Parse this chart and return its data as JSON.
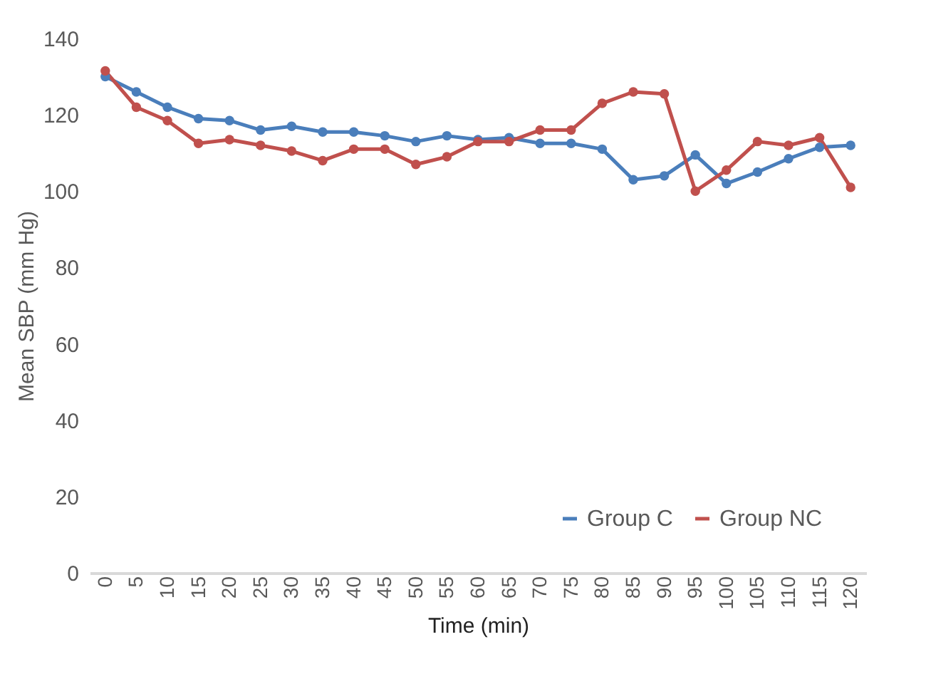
{
  "chart_data": {
    "type": "line",
    "xlabel": "Time (min)",
    "ylabel": "Mean SBP (mm Hg)",
    "categories": [
      "0",
      "5",
      "10",
      "15",
      "20",
      "25",
      "30",
      "35",
      "40",
      "45",
      "50",
      "55",
      "60",
      "65",
      "70",
      "75",
      "80",
      "85",
      "90",
      "95",
      "100",
      "105",
      "110",
      "115",
      "120"
    ],
    "series": [
      {
        "name": "Group C",
        "color": "#4a7ebb",
        "values": [
          130,
          126,
          122,
          119,
          118.5,
          116,
          117,
          115.5,
          115.5,
          114.5,
          113,
          114.5,
          113.5,
          114,
          112.5,
          112.5,
          111,
          103,
          104,
          109.5,
          102,
          105,
          108.5,
          111.5,
          112
        ]
      },
      {
        "name": "Group NC",
        "color": "#c0504d",
        "values": [
          131.5,
          122,
          118.5,
          112.5,
          113.5,
          112,
          110.5,
          108,
          111,
          111,
          107,
          109,
          113,
          113,
          116,
          116,
          123,
          126,
          125.5,
          100,
          105.5,
          113,
          112,
          114,
          101
        ]
      }
    ],
    "ylim": [
      0,
      140
    ],
    "yticks": [
      0,
      20,
      40,
      60,
      80,
      100,
      120,
      140
    ],
    "grid": false,
    "legend": "bottom right",
    "marker": "circle",
    "line_style": "solid"
  }
}
